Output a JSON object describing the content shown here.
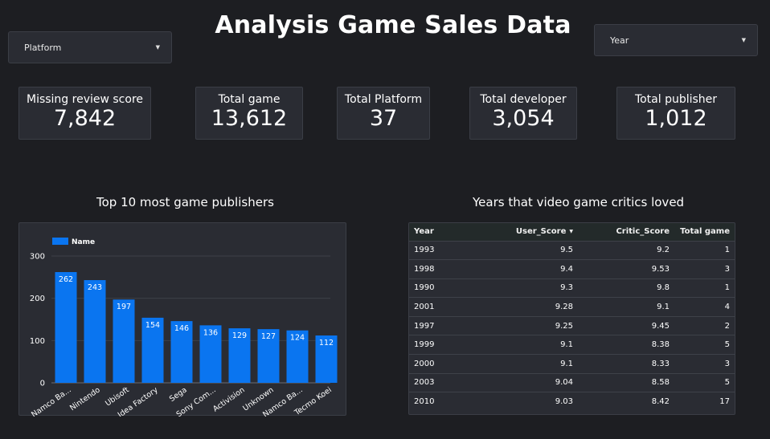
{
  "page": {
    "title": "Analysis Game Sales Data"
  },
  "filters": {
    "platform": {
      "label": "Platform"
    },
    "year": {
      "label": "Year"
    }
  },
  "kpis": {
    "missing_review": {
      "label": "Missing review score",
      "value": "7,842"
    },
    "total_game": {
      "label": "Total game",
      "value": "13,612"
    },
    "total_platform": {
      "label": "Total Platform",
      "value": "37"
    },
    "total_developer": {
      "label": "Total developer",
      "value": "3,054"
    },
    "total_publisher": {
      "label": "Total publisher",
      "value": "1,012"
    }
  },
  "chart_data": {
    "type": "bar",
    "title": "Top 10 most game publishers",
    "categories": [
      "Namco Ba...",
      "Nintendo",
      "Ubisoft",
      "Idea Factory",
      "Sega",
      "Sony Com...",
      "Activision",
      "Unknown",
      "Namco Ba...",
      "Tecmo Koei"
    ],
    "series": [
      {
        "name": "Name",
        "values": [
          262,
          243,
          197,
          154,
          146,
          136,
          129,
          127,
          124,
          112
        ]
      }
    ],
    "yticks": [
      0,
      100,
      200,
      300
    ],
    "ylim": [
      0,
      300
    ],
    "grid": true,
    "legend": "top-left",
    "bar_color": "#0a75f0"
  },
  "table": {
    "title": "Years that video game critics loved",
    "columns": [
      "Year",
      "User_Score",
      "Critic_Score",
      "Total game"
    ],
    "rows": [
      [
        "1993",
        "9.5",
        "9.2",
        "1"
      ],
      [
        "1998",
        "9.4",
        "9.53",
        "3"
      ],
      [
        "1990",
        "9.3",
        "9.8",
        "1"
      ],
      [
        "2001",
        "9.28",
        "9.1",
        "4"
      ],
      [
        "1997",
        "9.25",
        "9.45",
        "2"
      ],
      [
        "1999",
        "9.1",
        "8.38",
        "5"
      ],
      [
        "2000",
        "9.1",
        "8.33",
        "3"
      ],
      [
        "2003",
        "9.04",
        "8.58",
        "5"
      ],
      [
        "2010",
        "9.03",
        "8.42",
        "17"
      ]
    ]
  }
}
